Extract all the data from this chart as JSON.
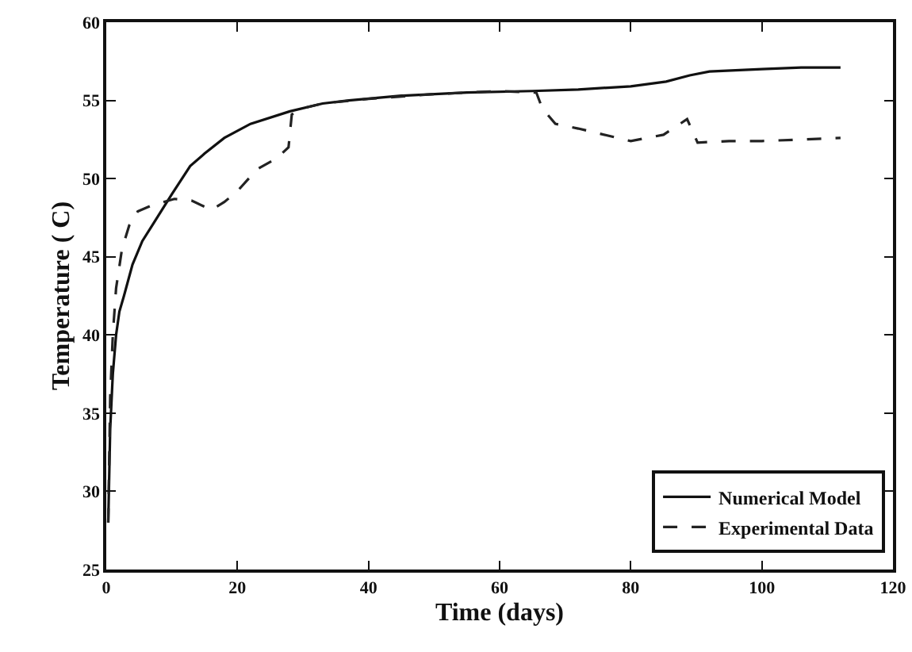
{
  "chart_data": {
    "type": "line",
    "xlabel": "Time (days)",
    "ylabel": "Temperature ( C)",
    "xlim": [
      0,
      120
    ],
    "xticks": [
      0,
      20,
      40,
      60,
      80,
      100,
      120
    ],
    "ylim": [
      25,
      60
    ],
    "yticks": [
      25,
      30,
      35,
      40,
      45,
      50,
      55,
      60
    ],
    "grid": false,
    "legend": "bottom right",
    "marker": "none",
    "series": [
      {
        "name": "Numerical Model",
        "color": "#111111",
        "line_style": "solid",
        "x": [
          0.3,
          0.6,
          1,
          1.5,
          2,
          2.7,
          4,
          5.5,
          7.3,
          10,
          12.8,
          15,
          18,
          22,
          28,
          33,
          37,
          45,
          55,
          65,
          72,
          80,
          85.4,
          89,
          92,
          100,
          106,
          112
        ],
        "values": [
          28,
          34,
          37.5,
          40,
          41.5,
          42.5,
          44.5,
          46,
          47.2,
          49,
          50.8,
          51.6,
          52.6,
          53.5,
          54.3,
          54.8,
          55,
          55.3,
          55.5,
          55.6,
          55.7,
          55.9,
          56.2,
          56.6,
          56.85,
          57,
          57.1,
          57.1
        ]
      },
      {
        "name": "Experimental Data",
        "color": "#222222",
        "line_style": "dashed",
        "x": [
          0.3,
          0.6,
          1,
          1.5,
          2.4,
          3.5,
          4.8,
          7,
          10.4,
          13,
          16,
          18,
          20,
          23,
          26,
          27.8,
          28.3,
          30,
          33,
          40,
          50,
          60,
          65.6,
          66.5,
          68.5,
          72,
          80,
          85,
          88.6,
          90.2,
          95,
          100,
          106,
          112
        ],
        "values": [
          28,
          36,
          40,
          43,
          45.5,
          47,
          47.9,
          48.3,
          48.7,
          48.6,
          48,
          48.5,
          49.2,
          50.6,
          51.3,
          52,
          54.1,
          54.5,
          54.8,
          55.1,
          55.4,
          55.6,
          55.5,
          54.5,
          53.5,
          53.2,
          52.4,
          52.8,
          53.8,
          52.3,
          52.4,
          52.4,
          52.5,
          52.6
        ]
      }
    ]
  }
}
